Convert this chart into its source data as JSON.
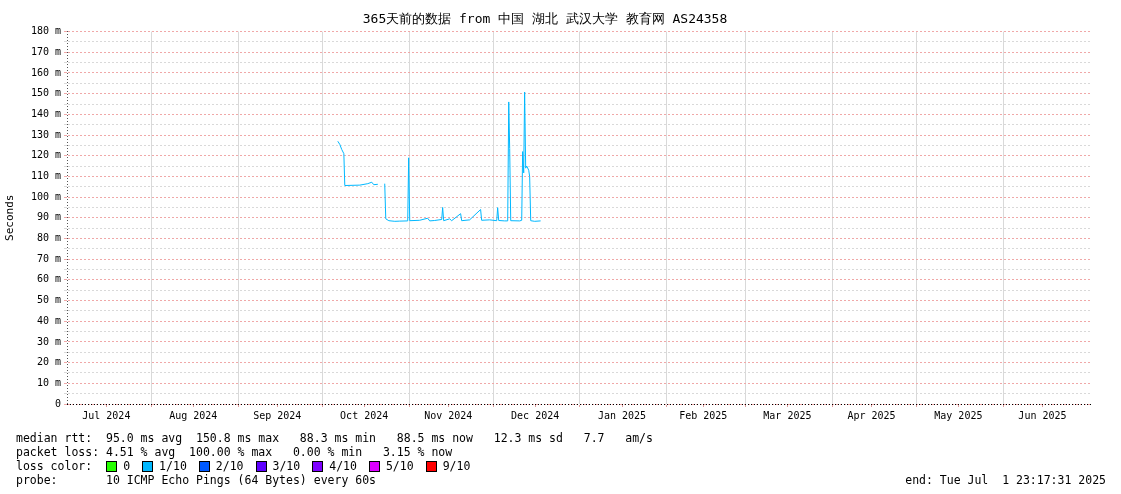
{
  "chart_data": {
    "type": "line",
    "title": "365天前的数据 from 中国 湖北 武汉大学 教育网 AS24358",
    "ylabel": "Seconds",
    "legend_title": "loss color:",
    "legend": "bottom left",
    "grid": true,
    "marker": "none",
    "line_style": "solid",
    "xlim": [
      "2024-07-01T23:17",
      "2025-07-01T23:17"
    ],
    "xticks": [
      {
        "value": "2024-07-16",
        "label": "Jul 2024"
      },
      {
        "value": "2024-08-01",
        "label": null
      },
      {
        "value": "2024-08-16",
        "label": "Aug 2024"
      },
      {
        "value": "2024-09-01",
        "label": null
      },
      {
        "value": "2024-09-15",
        "label": "Sep 2024"
      },
      {
        "value": "2024-10-01",
        "label": null
      },
      {
        "value": "2024-10-16",
        "label": "Oct 2024"
      },
      {
        "value": "2024-11-01",
        "label": null
      },
      {
        "value": "2024-11-15",
        "label": "Nov 2024"
      },
      {
        "value": "2024-12-01",
        "label": null
      },
      {
        "value": "2024-12-16",
        "label": "Dec 2024"
      },
      {
        "value": "2025-01-01",
        "label": null
      },
      {
        "value": "2025-01-16",
        "label": "Jan 2025"
      },
      {
        "value": "2025-02-01",
        "label": null
      },
      {
        "value": "2025-02-14",
        "label": "Feb 2025"
      },
      {
        "value": "2025-03-01",
        "label": null
      },
      {
        "value": "2025-03-16",
        "label": "Mar 2025"
      },
      {
        "value": "2025-04-01",
        "label": null
      },
      {
        "value": "2025-04-15",
        "label": "Apr 2025"
      },
      {
        "value": "2025-05-01",
        "label": null
      },
      {
        "value": "2025-05-16",
        "label": "May 2025"
      },
      {
        "value": "2025-06-01",
        "label": null
      },
      {
        "value": "2025-06-15",
        "label": "Jun 2025"
      }
    ],
    "ylim": [
      0,
      180
    ],
    "yticks": [
      0,
      {
        "value": 5,
        "label": null
      },
      {
        "value": 10,
        "label": "10 m"
      },
      {
        "value": 15,
        "label": null
      },
      {
        "value": 20,
        "label": "20 m"
      },
      {
        "value": 25,
        "label": null
      },
      {
        "value": 30,
        "label": "30 m"
      },
      {
        "value": 35,
        "label": null
      },
      {
        "value": 40,
        "label": "40 m"
      },
      {
        "value": 45,
        "label": null
      },
      {
        "value": 50,
        "label": "50 m"
      },
      {
        "value": 55,
        "label": null
      },
      {
        "value": 60,
        "label": "60 m"
      },
      {
        "value": 65,
        "label": null
      },
      {
        "value": 70,
        "label": "70 m"
      },
      {
        "value": 75,
        "label": null
      },
      {
        "value": 80,
        "label": "80 m"
      },
      {
        "value": 85,
        "label": null
      },
      {
        "value": 90,
        "label": "90 m"
      },
      {
        "value": 95,
        "label": null
      },
      {
        "value": 100,
        "label": "100 m"
      },
      {
        "value": 105,
        "label": null
      },
      {
        "value": 110,
        "label": "110 m"
      },
      {
        "value": 115,
        "label": null
      },
      {
        "value": 120,
        "label": "120 m"
      },
      {
        "value": 125,
        "label": null
      },
      {
        "value": 130,
        "label": "130 m"
      },
      {
        "value": 135,
        "label": null
      },
      {
        "value": 140,
        "label": "140 m"
      },
      {
        "value": 145,
        "label": null
      },
      {
        "value": 150,
        "label": "150 m"
      },
      {
        "value": 155,
        "label": null
      },
      {
        "value": 160,
        "label": "160 m"
      },
      {
        "value": 165,
        "label": null
      },
      {
        "value": 170,
        "label": "170 m"
      },
      {
        "value": 175,
        "label": null
      },
      {
        "value": 180,
        "label": "180 m"
      }
    ],
    "x": [
      "2024-10-06T14:00",
      "2024-10-07T07:00",
      "2024-10-08T00:00",
      "2024-10-08T18:00",
      "2024-10-09T02:00",
      "2024-10-14T11:00",
      "2024-10-17T07:00",
      "2024-10-18T17:00",
      "2024-10-19T10:00",
      "2024-10-20T21:00",
      "2024-10-21T22:00",
      "2024-10-23T08:00",
      "2024-10-23T17:00",
      "2024-10-24T19:00",
      "2024-10-26T22:00",
      "2024-10-28T17:00",
      "2024-10-31T13:00",
      "2024-10-31T21:00",
      "2024-11-01T06:00",
      "2024-11-04T19:00",
      "2024-11-07T16:00",
      "2024-11-08T09:00",
      "2024-11-10T04:00",
      "2024-11-12T16:00",
      "2024-11-13T00:00",
      "2024-11-13T09:00",
      "2024-11-15T12:00",
      "2024-11-16T05:00",
      "2024-11-19T10:00",
      "2024-11-19T19:00",
      "2024-11-22T15:00",
      "2024-11-26T13:00",
      "2024-11-26T22:00",
      "2024-11-29T18:00",
      "2024-12-02T07:00",
      "2024-12-02T15:00",
      "2024-12-03T00:00",
      "2024-12-05T03:00",
      "2024-12-06T05:00",
      "2024-12-06T14:00",
      "2024-12-06T22:00",
      "2024-12-07T07:00",
      "2024-12-10T12:00",
      "2024-12-11T05:00",
      "2024-12-11T13:00",
      "2024-12-11T22:00",
      "2024-12-12T06:00",
      "2024-12-12T15:00",
      "2024-12-13T00:00",
      "2024-12-13T17:00",
      "2024-12-14T01:00",
      "2024-12-14T10:00",
      "2024-12-15T20:00",
      "2024-12-17T23:00"
    ],
    "series": [
      {
        "name": "0",
        "color": "#26ff00",
        "values": [
          null,
          null,
          null,
          null,
          null,
          null,
          null,
          null,
          null,
          null,
          null,
          null,
          null,
          null,
          null,
          null,
          null,
          null,
          null,
          null,
          null,
          null,
          null,
          null,
          null,
          null,
          null,
          null,
          null,
          null,
          null,
          null,
          null,
          null,
          null,
          null,
          null,
          null,
          null,
          null,
          null,
          null,
          null,
          null,
          null,
          null,
          null,
          null,
          null,
          null,
          null,
          null,
          null,
          null
        ]
      },
      {
        "name": "1/10",
        "color": "#00b8ff",
        "values": [
          127,
          125.5,
          123,
          121,
          105.6,
          105.8,
          106.5,
          107.2,
          106,
          106.2,
          null,
          106.5,
          89.5,
          88.6,
          88.3,
          88.4,
          88.5,
          119,
          88.6,
          88.8,
          89.8,
          88.5,
          88.7,
          89.2,
          95,
          88.6,
          89.5,
          88.6,
          92,
          88.6,
          89,
          94,
          88.8,
          89,
          88.6,
          94.9,
          88.7,
          88.5,
          88.5,
          146,
          123.5,
          88.6,
          88.5,
          88.8,
          122,
          111.7,
          150.8,
          114,
          115,
          113,
          110,
          88.6,
          88.3,
          88.5
        ]
      },
      {
        "name": "2/10",
        "color": "#0059ff",
        "values": [
          null,
          null,
          null,
          null,
          null,
          null,
          null,
          null,
          null,
          null,
          null,
          null,
          null,
          null,
          null,
          null,
          null,
          null,
          null,
          null,
          null,
          null,
          null,
          null,
          null,
          null,
          null,
          null,
          null,
          null,
          null,
          null,
          null,
          null,
          null,
          null,
          null,
          null,
          null,
          null,
          null,
          null,
          null,
          null,
          null,
          null,
          null,
          null,
          null,
          null,
          null,
          null,
          null,
          null
        ]
      },
      {
        "name": "3/10",
        "color": "#5e00ff",
        "values": [
          null,
          null,
          null,
          null,
          null,
          null,
          null,
          null,
          null,
          null,
          null,
          null,
          null,
          null,
          null,
          null,
          null,
          null,
          null,
          null,
          null,
          null,
          null,
          null,
          null,
          null,
          null,
          null,
          null,
          null,
          null,
          null,
          null,
          null,
          null,
          null,
          null,
          null,
          null,
          null,
          null,
          null,
          null,
          null,
          null,
          null,
          null,
          null,
          null,
          null,
          null,
          null,
          null,
          null
        ]
      },
      {
        "name": "4/10",
        "color": "#7e00ff",
        "values": [
          null,
          null,
          null,
          null,
          null,
          null,
          null,
          null,
          null,
          null,
          null,
          null,
          null,
          null,
          null,
          null,
          null,
          null,
          null,
          null,
          null,
          null,
          null,
          null,
          null,
          null,
          null,
          null,
          null,
          null,
          null,
          null,
          null,
          null,
          null,
          null,
          null,
          null,
          null,
          null,
          null,
          null,
          null,
          null,
          null,
          null,
          null,
          null,
          null,
          null,
          null,
          null,
          null,
          null
        ]
      },
      {
        "name": "5/10",
        "color": "#dd00ff",
        "values": [
          null,
          null,
          null,
          null,
          null,
          null,
          null,
          null,
          null,
          null,
          null,
          null,
          null,
          null,
          null,
          null,
          null,
          null,
          null,
          null,
          null,
          null,
          null,
          null,
          null,
          null,
          null,
          null,
          null,
          null,
          null,
          null,
          null,
          null,
          null,
          null,
          null,
          null,
          null,
          null,
          null,
          null,
          null,
          null,
          null,
          null,
          null,
          null,
          null,
          null,
          null,
          null,
          null,
          null
        ]
      },
      {
        "name": "9/10",
        "color": "#ff0000",
        "values": [
          null,
          null,
          null,
          null,
          null,
          null,
          null,
          null,
          null,
          null,
          null,
          null,
          null,
          null,
          null,
          null,
          null,
          null,
          null,
          null,
          null,
          null,
          null,
          null,
          null,
          null,
          null,
          null,
          null,
          null,
          null,
          null,
          null,
          null,
          null,
          null,
          null,
          null,
          null,
          null,
          null,
          null,
          null,
          null,
          null,
          null,
          null,
          null,
          null,
          null,
          null,
          null,
          null,
          null
        ]
      }
    ],
    "annotations": [
      "median rtt:  95.0 ms avg  150.8 ms max   88.3 ms min   88.5 ms now   12.3 ms sd   7.7   am/s",
      "packet loss: 4.51 % avg  100.00 % max   0.00 % min   3.15 % now",
      "probe:       10 ICMP Echo Pings (64 Bytes) every 60s",
      "end: Tue Jul  1 23:17:31 2025"
    ]
  }
}
